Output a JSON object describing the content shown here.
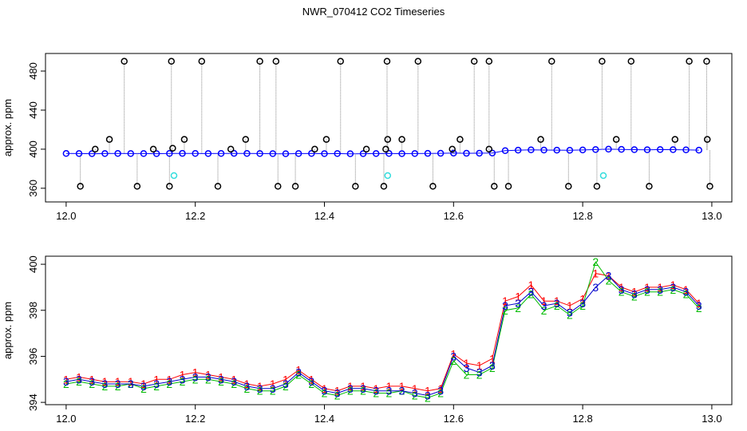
{
  "title": "NWR_070412  CO2 Timeseries",
  "chart_data": [
    {
      "type": "scatter",
      "ylabel": "approx. ppm",
      "xlim": [
        11.968,
        13.031
      ],
      "ylim": [
        346,
        498
      ],
      "xticks": [
        {
          "value": 12,
          "label": "12.0"
        },
        {
          "value": 12.2,
          "label": "12.2"
        },
        {
          "value": 12.4,
          "label": "12.4"
        },
        {
          "value": 12.6,
          "label": "12.6"
        },
        {
          "value": 12.8,
          "label": "12.8"
        },
        {
          "value": 13,
          "label": "13.0"
        }
      ],
      "yticks": [
        360,
        400,
        440,
        480
      ],
      "series": [
        {
          "color": "#0000ff",
          "marker": "o",
          "line": true,
          "x": [
            12.0,
            12.02,
            12.04,
            12.06,
            12.08,
            12.1,
            12.12,
            12.14,
            12.16,
            12.18,
            12.2,
            12.22,
            12.24,
            12.26,
            12.28,
            12.3,
            12.32,
            12.34,
            12.36,
            12.38,
            12.4,
            12.42,
            12.44,
            12.46,
            12.48,
            12.5,
            12.52,
            12.54,
            12.56,
            12.58,
            12.6,
            12.62,
            12.64,
            12.66,
            12.68,
            12.7,
            12.72,
            12.74,
            12.76,
            12.78,
            12.8,
            12.82,
            12.84,
            12.86,
            12.88,
            12.9,
            12.92,
            12.94,
            12.96,
            12.98
          ],
          "values": [
            395.6,
            395.5,
            395.4,
            395.5,
            395.6,
            395.5,
            395.5,
            395.4,
            395.6,
            395.7,
            395.6,
            395.5,
            395.6,
            395.7,
            395.6,
            395.5,
            395.4,
            395.3,
            395.5,
            395.6,
            395.4,
            395.5,
            395.3,
            395.4,
            395.5,
            395.6,
            395.4,
            395.5,
            395.7,
            395.8,
            396.0,
            395.8,
            395.9,
            396.1,
            398.5,
            399.0,
            399.3,
            399.1,
            399.0,
            398.9,
            399.2,
            399.6,
            400.0,
            399.8,
            399.5,
            399.4,
            399.6,
            399.5,
            399.3,
            399.0
          ]
        },
        {
          "color": "#000000",
          "marker": "o",
          "spikes": true,
          "x": [
            12.09,
            12.163,
            12.21,
            12.3,
            12.325,
            12.425,
            12.497,
            12.545,
            12.632,
            12.655,
            12.752,
            12.83,
            12.875,
            12.965,
            12.992,
            12.022,
            12.11,
            12.16,
            12.235,
            12.328,
            12.355,
            12.448,
            12.492,
            12.568,
            12.663,
            12.685,
            12.778,
            12.822,
            12.903,
            12.997,
            12.045,
            12.135,
            12.165,
            12.255,
            12.385,
            12.465,
            12.495,
            12.598,
            12.655,
            12.067,
            12.183,
            12.278,
            12.403,
            12.498,
            12.52,
            12.61,
            12.735,
            12.852,
            12.943,
            12.993
          ],
          "values": [
            490,
            490,
            490,
            490,
            490,
            490,
            490,
            490,
            490,
            490,
            490,
            490,
            490,
            490,
            490,
            362,
            362,
            362,
            362,
            362,
            362,
            362,
            362,
            362,
            362,
            362,
            362,
            362,
            362,
            362,
            400,
            400,
            401,
            400,
            400,
            400,
            400,
            400,
            400,
            410,
            410,
            410,
            410,
            410,
            410,
            410,
            410,
            410,
            410,
            410
          ]
        },
        {
          "color": "#33dddd",
          "marker": "o",
          "x": [
            12.167,
            12.498,
            12.832
          ],
          "values": [
            373,
            373,
            373
          ]
        }
      ]
    },
    {
      "type": "scatter",
      "ylabel": "approx. ppm",
      "xlim": [
        11.968,
        13.031
      ],
      "ylim": [
        393.9,
        400.35
      ],
      "xticks": [
        {
          "value": 12,
          "label": "12.0"
        },
        {
          "value": 12.2,
          "label": "12.2"
        },
        {
          "value": 12.4,
          "label": "12.4"
        },
        {
          "value": 12.6,
          "label": "12.6"
        },
        {
          "value": 12.8,
          "label": "12.8"
        },
        {
          "value": 13,
          "label": "13.0"
        }
      ],
      "yticks": [
        394,
        396,
        398,
        400
      ],
      "series": [
        {
          "color": "#ff0000",
          "symbol": "1",
          "line": true,
          "x": [
            12.0,
            12.02,
            12.04,
            12.06,
            12.08,
            12.1,
            12.12,
            12.14,
            12.16,
            12.18,
            12.2,
            12.22,
            12.24,
            12.26,
            12.28,
            12.3,
            12.32,
            12.34,
            12.36,
            12.38,
            12.4,
            12.42,
            12.44,
            12.46,
            12.48,
            12.5,
            12.52,
            12.54,
            12.56,
            12.58,
            12.6,
            12.62,
            12.64,
            12.66,
            12.68,
            12.7,
            12.72,
            12.74,
            12.76,
            12.78,
            12.8,
            12.82,
            12.84,
            12.86,
            12.88,
            12.9,
            12.92,
            12.94,
            12.96,
            12.98
          ],
          "values": [
            395.0,
            395.1,
            395.0,
            394.9,
            394.9,
            394.9,
            394.8,
            395.0,
            395.0,
            395.2,
            395.3,
            395.2,
            395.1,
            395.0,
            394.8,
            394.7,
            394.8,
            395.0,
            395.4,
            395.0,
            394.6,
            394.5,
            394.7,
            394.7,
            394.6,
            394.7,
            394.7,
            394.6,
            394.5,
            394.6,
            396.1,
            395.7,
            395.6,
            395.9,
            398.4,
            398.6,
            399.1,
            398.4,
            398.4,
            398.2,
            398.5,
            399.6,
            399.5,
            399.0,
            398.8,
            399.0,
            399.0,
            399.1,
            398.9,
            398.3
          ]
        },
        {
          "color": "#00bb00",
          "symbol": "2",
          "line": true,
          "x": [
            12.0,
            12.02,
            12.04,
            12.06,
            12.08,
            12.1,
            12.12,
            12.14,
            12.16,
            12.18,
            12.2,
            12.22,
            12.24,
            12.26,
            12.28,
            12.3,
            12.32,
            12.34,
            12.36,
            12.38,
            12.4,
            12.42,
            12.44,
            12.46,
            12.48,
            12.5,
            12.52,
            12.54,
            12.56,
            12.58,
            12.6,
            12.62,
            12.64,
            12.66,
            12.68,
            12.7,
            12.72,
            12.74,
            12.76,
            12.78,
            12.8,
            12.82,
            12.84,
            12.86,
            12.88,
            12.9,
            12.92,
            12.94,
            12.96,
            12.98
          ],
          "values": [
            394.8,
            394.9,
            394.8,
            394.7,
            394.7,
            394.8,
            394.6,
            394.7,
            394.8,
            394.9,
            395.0,
            395.0,
            394.9,
            394.8,
            394.6,
            394.5,
            394.5,
            394.7,
            395.2,
            394.8,
            394.4,
            394.3,
            394.5,
            394.5,
            394.4,
            394.4,
            394.5,
            394.3,
            394.2,
            394.4,
            395.8,
            395.2,
            395.2,
            395.5,
            398.0,
            398.1,
            398.7,
            398.0,
            398.2,
            397.8,
            398.2,
            400.1,
            399.3,
            398.8,
            398.6,
            398.8,
            398.8,
            398.9,
            398.7,
            398.1
          ]
        },
        {
          "color": "#0000cc",
          "symbol": "3",
          "line": true,
          "x": [
            12.0,
            12.02,
            12.04,
            12.06,
            12.08,
            12.1,
            12.12,
            12.14,
            12.16,
            12.18,
            12.2,
            12.22,
            12.24,
            12.26,
            12.28,
            12.3,
            12.32,
            12.34,
            12.36,
            12.38,
            12.4,
            12.42,
            12.44,
            12.46,
            12.48,
            12.5,
            12.52,
            12.54,
            12.56,
            12.58,
            12.6,
            12.62,
            12.64,
            12.66,
            12.68,
            12.7,
            12.72,
            12.74,
            12.76,
            12.78,
            12.8,
            12.82,
            12.84,
            12.86,
            12.88,
            12.9,
            12.92,
            12.94,
            12.96,
            12.98
          ],
          "values": [
            394.9,
            395.0,
            394.9,
            394.8,
            394.8,
            394.8,
            394.7,
            394.8,
            394.9,
            395.0,
            395.1,
            395.1,
            395.0,
            394.9,
            394.7,
            394.6,
            394.6,
            394.8,
            395.3,
            394.9,
            394.5,
            394.4,
            394.6,
            394.6,
            394.5,
            394.5,
            394.5,
            394.4,
            394.3,
            394.5,
            396.0,
            395.5,
            395.3,
            395.6,
            398.2,
            398.3,
            398.8,
            398.2,
            398.3,
            397.9,
            398.3,
            399.0,
            399.5,
            398.9,
            398.7,
            398.9,
            398.9,
            399.0,
            398.8,
            398.2
          ]
        }
      ]
    }
  ]
}
